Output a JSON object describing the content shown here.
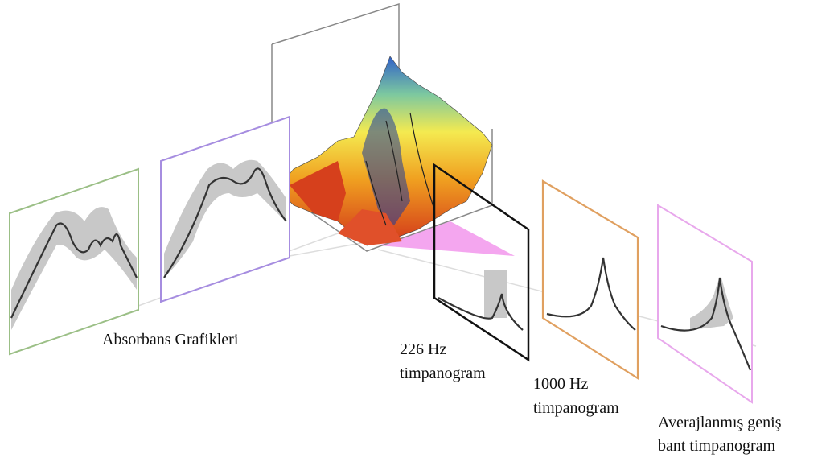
{
  "labels": {
    "absorbance": "Absorbans Grafikleri",
    "tymp_226": [
      "226 Hz",
      "timpanogram"
    ],
    "tymp_1000": [
      "1000 Hz",
      "timpanogram"
    ],
    "tymp_averaged": [
      "Averajlanmış geniş",
      "bant timpanogram"
    ]
  }
}
